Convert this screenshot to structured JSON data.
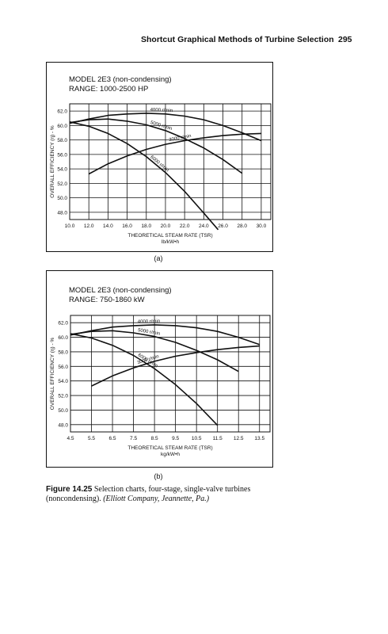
{
  "header": {
    "running_title": "Shortcut Graphical Methods of Turbine Selection",
    "page_number": "295"
  },
  "chart_data": [
    {
      "type": "line",
      "title": "MODEL 2E3 (non-condensing)",
      "subtitle": "RANGE: 1000-2500 HP",
      "ylabel": "OVERALL EFFICIENCY (η) - %",
      "xlabel": "THEORETICAL STEAM RATE (TSR)",
      "xunit": "lb/kW•h",
      "xlim": [
        10.0,
        31.0
      ],
      "ylim": [
        47.0,
        63.0
      ],
      "xticks": [
        "10.0",
        "12.0",
        "14.0",
        "16.0",
        "18.0",
        "20.0",
        "22.0",
        "24.0",
        "26.0",
        "28.0",
        "30.0"
      ],
      "yticks": [
        "48.0",
        "50.0",
        "52.0",
        "54.0",
        "56.0",
        "58.0",
        "60.0",
        "62.0"
      ],
      "grid": true,
      "series": [
        {
          "name": "4000 r/min",
          "x": [
            10.0,
            12.0,
            14.0,
            16.0,
            18.0,
            20.0,
            22.0,
            24.0,
            26.0,
            28.0,
            30.0
          ],
          "y": [
            60.3,
            60.9,
            61.4,
            61.6,
            61.7,
            61.6,
            61.3,
            60.8,
            60.0,
            59.0,
            57.9
          ]
        },
        {
          "name": "5000 r/min",
          "x": [
            10.0,
            12.0,
            14.0,
            16.0,
            18.0,
            20.0,
            22.0,
            24.0,
            26.0,
            28.0
          ],
          "y": [
            60.4,
            60.8,
            60.9,
            60.6,
            60.1,
            59.3,
            58.2,
            56.9,
            55.3,
            53.4
          ]
        },
        {
          "name": "6000 r/min",
          "x": [
            10.0,
            12.0,
            14.0,
            16.0,
            18.0,
            20.0,
            22.0,
            24.0,
            25.5
          ],
          "y": [
            60.5,
            59.9,
            58.9,
            57.5,
            55.7,
            53.5,
            50.9,
            47.9,
            45.6
          ]
        },
        {
          "name": "3000 r/min",
          "x": [
            12.0,
            14.0,
            16.0,
            18.0,
            20.0,
            22.0,
            24.0,
            26.0,
            28.0,
            30.0
          ],
          "y": [
            53.3,
            54.7,
            55.8,
            56.7,
            57.4,
            57.9,
            58.3,
            58.6,
            58.8,
            58.9
          ]
        }
      ]
    },
    {
      "type": "line",
      "title": "MODEL 2E3 (non-condensing)",
      "subtitle": "RANGE: 750-1860 kW",
      "ylabel": "OVERALL EFFICIENCY (η) - %",
      "xlabel": "THEORETICAL STEAM RATE (TSR)",
      "xunit": "kg/kW•h",
      "xlim": [
        4.5,
        14.0
      ],
      "ylim": [
        47.0,
        63.0
      ],
      "xticks": [
        "4.5",
        "5.5",
        "6.5",
        "7.5",
        "8.5",
        "9.5",
        "10.5",
        "11.5",
        "12.5",
        "13.5"
      ],
      "yticks": [
        "48.0",
        "50.0",
        "52.0",
        "54.0",
        "56.0",
        "58.0",
        "60.0",
        "62.0"
      ],
      "grid": true,
      "series": [
        {
          "name": "4000 r/min",
          "x": [
            4.5,
            5.5,
            6.5,
            7.5,
            8.5,
            9.5,
            10.5,
            11.5,
            12.5,
            13.5
          ],
          "y": [
            60.3,
            60.9,
            61.4,
            61.6,
            61.7,
            61.6,
            61.3,
            60.8,
            60.0,
            59.0
          ]
        },
        {
          "name": "5000 r/min",
          "x": [
            4.5,
            5.5,
            6.5,
            7.5,
            8.5,
            9.5,
            10.5,
            11.5,
            12.5
          ],
          "y": [
            60.4,
            60.8,
            60.9,
            60.6,
            60.1,
            59.3,
            58.2,
            56.9,
            55.3
          ]
        },
        {
          "name": "6000 r/min",
          "x": [
            4.5,
            5.5,
            6.5,
            7.5,
            8.5,
            9.5,
            10.5,
            11.5
          ],
          "y": [
            60.5,
            59.9,
            58.9,
            57.5,
            55.7,
            53.5,
            50.9,
            47.9
          ]
        },
        {
          "name": "3000 r/min",
          "x": [
            5.5,
            6.5,
            7.5,
            8.5,
            9.5,
            10.5,
            11.5,
            12.5,
            13.5
          ],
          "y": [
            53.3,
            54.7,
            55.8,
            56.7,
            57.4,
            57.9,
            58.3,
            58.6,
            58.8
          ]
        }
      ]
    }
  ],
  "panel_labels": [
    "(a)",
    "(b)"
  ],
  "caption": {
    "figure_number": "Figure 14.25",
    "text": "Selection charts, four-stage, single-valve turbines (noncondensing).",
    "credit": "(Elliott Company, Jeannette, Pa.)"
  }
}
